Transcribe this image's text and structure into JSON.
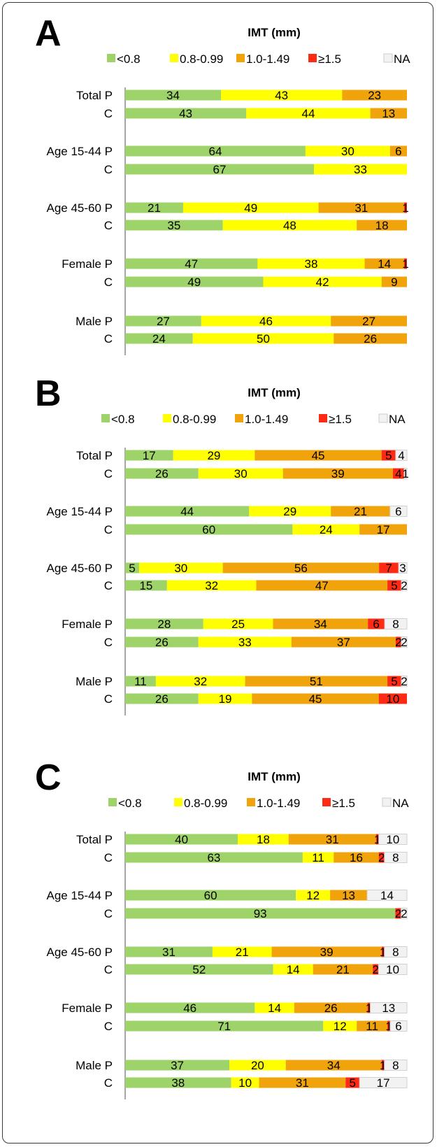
{
  "legend_title": "IMT (mm)",
  "categories": [
    "<0.8",
    "0.8-0.99",
    "1.0-1.49",
    "≥1.5",
    "NA"
  ],
  "colors": {
    "<0.8": "#9ed36a",
    "0.8-0.99": "#ffff00",
    "1.0-1.49": "#f0a30a",
    "≥1.5": "#ff2a14",
    "NA": "#f2f2f2"
  },
  "chart_data": [
    {
      "type": "bar",
      "orientation": "horizontal-stacked-100",
      "panel_label": "A",
      "title": "IMT (mm)",
      "legend": [
        "<0.8",
        "0.8-0.99",
        "1.0-1.49",
        "≥1.5",
        "NA"
      ],
      "rows": [
        {
          "label": "Total P",
          "values": [
            34,
            43,
            23,
            0,
            0
          ]
        },
        {
          "label": "C",
          "values": [
            43,
            44,
            13,
            0,
            0
          ]
        },
        {
          "label": "Age 15-44 P",
          "values": [
            64,
            30,
            6,
            0,
            0
          ]
        },
        {
          "label": "C",
          "values": [
            67,
            33,
            0,
            0,
            0
          ]
        },
        {
          "label": "Age 45-60 P",
          "values": [
            21,
            49,
            31,
            1,
            0
          ]
        },
        {
          "label": "C",
          "values": [
            35,
            48,
            18,
            0,
            0
          ]
        },
        {
          "label": "Female P",
          "values": [
            47,
            38,
            14,
            1,
            0
          ]
        },
        {
          "label": "C",
          "values": [
            49,
            42,
            9,
            0,
            0
          ]
        },
        {
          "label": "Male P",
          "values": [
            27,
            46,
            27,
            0,
            0
          ]
        },
        {
          "label": "C",
          "values": [
            24,
            50,
            26,
            0,
            0
          ]
        }
      ]
    },
    {
      "type": "bar",
      "orientation": "horizontal-stacked-100",
      "panel_label": "B",
      "title": "IMT (mm)",
      "legend": [
        "<0.8",
        "0.8-0.99",
        "1.0-1.49",
        "≥1.5",
        "NA"
      ],
      "rows": [
        {
          "label": "Total P",
          "values": [
            17,
            29,
            45,
            5,
            4
          ]
        },
        {
          "label": "C",
          "values": [
            26,
            30,
            39,
            4,
            1
          ]
        },
        {
          "label": "Age 15-44 P",
          "values": [
            44,
            29,
            21,
            0,
            6
          ]
        },
        {
          "label": "C",
          "values": [
            60,
            24,
            17,
            0,
            0
          ]
        },
        {
          "label": "Age 45-60 P",
          "values": [
            5,
            30,
            56,
            7,
            3
          ]
        },
        {
          "label": "C",
          "values": [
            15,
            32,
            47,
            5,
            2
          ]
        },
        {
          "label": "Female P",
          "values": [
            28,
            25,
            34,
            6,
            8
          ]
        },
        {
          "label": "C",
          "values": [
            26,
            33,
            37,
            2,
            2
          ]
        },
        {
          "label": "Male P",
          "values": [
            11,
            32,
            51,
            5,
            2
          ]
        },
        {
          "label": "C",
          "values": [
            26,
            19,
            45,
            10,
            0
          ]
        }
      ]
    },
    {
      "type": "bar",
      "orientation": "horizontal-stacked-100",
      "panel_label": "C",
      "title": "IMT (mm)",
      "legend": [
        "<0.8",
        "0.8-0.99",
        "1.0-1.49",
        "≥1.5",
        "NA"
      ],
      "rows": [
        {
          "label": "Total P",
          "values": [
            40,
            18,
            31,
            1,
            10
          ]
        },
        {
          "label": "C",
          "values": [
            63,
            11,
            16,
            2,
            8
          ]
        },
        {
          "label": "Age 15-44 P",
          "values": [
            60,
            12,
            13,
            0,
            14
          ]
        },
        {
          "label": "C",
          "values": [
            93,
            0,
            0,
            2,
            2
          ]
        },
        {
          "label": "Age 45-60 P",
          "values": [
            31,
            21,
            39,
            1,
            8
          ]
        },
        {
          "label": "C",
          "values": [
            52,
            14,
            21,
            2,
            10
          ]
        },
        {
          "label": "Female P",
          "values": [
            46,
            14,
            26,
            1,
            13
          ]
        },
        {
          "label": "C",
          "values": [
            71,
            12,
            11,
            1,
            6
          ]
        },
        {
          "label": "Male P",
          "values": [
            37,
            20,
            34,
            1,
            8
          ]
        },
        {
          "label": "C",
          "values": [
            38,
            10,
            31,
            5,
            17
          ]
        }
      ]
    }
  ]
}
